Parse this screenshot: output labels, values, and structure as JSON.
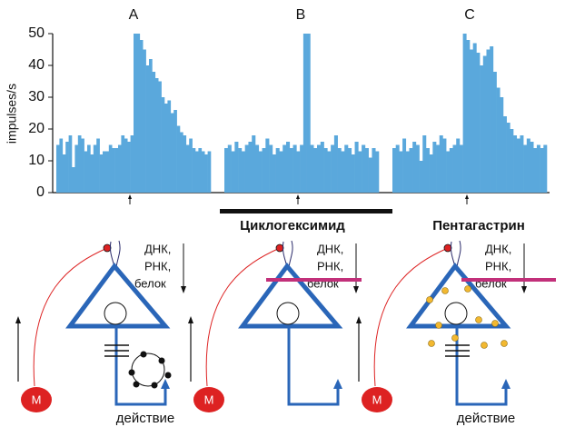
{
  "chart_data": [
    {
      "type": "bar",
      "title": "A",
      "ylabel": "impulses/s",
      "color": "#5aa8dc",
      "ylim": [
        0,
        50
      ],
      "yticks": [
        0,
        10,
        20,
        30,
        40,
        50
      ],
      "values": [
        15,
        17,
        12,
        16,
        18,
        8,
        15,
        18,
        17,
        13,
        15,
        12,
        15,
        17,
        12,
        13,
        13,
        15,
        14,
        14,
        15,
        18,
        17,
        16,
        18,
        50,
        50,
        48,
        45,
        40,
        42,
        38,
        36,
        35,
        30,
        28,
        29,
        25,
        26,
        21,
        19,
        18,
        15,
        17,
        14,
        13,
        14,
        13,
        12,
        13
      ]
    },
    {
      "type": "bar",
      "title": "B",
      "color": "#5aa8dc",
      "ylim": [
        0,
        50
      ],
      "values": [
        14,
        15,
        13,
        16,
        14,
        13,
        15,
        16,
        18,
        15,
        13,
        14,
        17,
        15,
        12,
        14,
        13,
        15,
        16,
        14,
        15,
        13,
        15,
        50,
        50,
        15,
        14,
        15,
        16,
        14,
        13,
        15,
        18,
        14,
        13,
        15,
        14,
        12,
        16,
        13,
        15,
        14,
        11,
        14,
        13
      ]
    },
    {
      "type": "bar",
      "title": "C",
      "color": "#5aa8dc",
      "ylim": [
        0,
        50
      ],
      "values": [
        14,
        15,
        13,
        17,
        13,
        14,
        16,
        15,
        10,
        18,
        14,
        12,
        16,
        15,
        18,
        17,
        13,
        14,
        15,
        17,
        15,
        50,
        48,
        45,
        47,
        44,
        40,
        43,
        45,
        46,
        38,
        33,
        30,
        24,
        22,
        20,
        18,
        17,
        18,
        15,
        17,
        16,
        14,
        15,
        14,
        15
      ]
    }
  ],
  "diagram": {
    "drugs": [
      "Циклогексимид",
      "Пентагастрин"
    ],
    "panels": [
      {
        "dna": "ДНК,",
        "rna": "РНК,",
        "protein": "белок",
        "motor": "М",
        "action": "действие"
      },
      {
        "dna": "ДНК,",
        "rna": "РНК,",
        "protein": "белок",
        "motor": "М"
      },
      {
        "dna": "ДНК,",
        "rna": "РНК,",
        "protein": "белок",
        "motor": "М",
        "action": "действие"
      }
    ]
  }
}
